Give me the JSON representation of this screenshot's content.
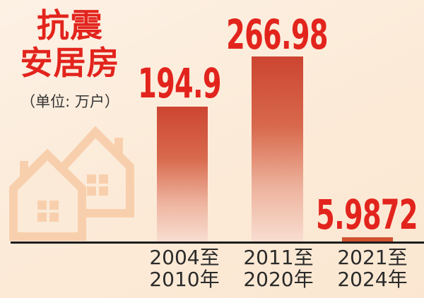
{
  "title": {
    "line1": "抗震",
    "line2": "安居房"
  },
  "unit_label": "（单位: 万户）",
  "colors": {
    "background_top": "#fdf1e5",
    "background_bottom": "#fbe7d1",
    "accent_red": "#e2241d",
    "bar_gradient_top": "#cc4530",
    "bar_gradient_bottom": "#f8ddd0",
    "bar_small_solid": "#d0522f",
    "axis_line": "#1c1c1c",
    "label_text": "#2a2a2a",
    "watermark": "#f8cfad"
  },
  "chart_data": {
    "type": "bar",
    "title": "抗震安居房",
    "unit": "万户",
    "categories": [
      "2004至2010年",
      "2011至2020年",
      "2021至2024年"
    ],
    "category_lines": [
      [
        "2004至",
        "2010年"
      ],
      [
        "2011至",
        "2020年"
      ],
      [
        "2021至",
        "2024年"
      ]
    ],
    "values": [
      194.9,
      266.98,
      5.9872
    ],
    "value_labels": [
      "194.9",
      "266.98",
      "5.9872"
    ],
    "xlabel": "",
    "ylabel": "万户",
    "ylim": [
      0,
      280
    ],
    "grid": false,
    "legend": "none",
    "orientation": "vertical"
  },
  "decoration": {
    "watermark": "two overlapping house outline icons"
  }
}
